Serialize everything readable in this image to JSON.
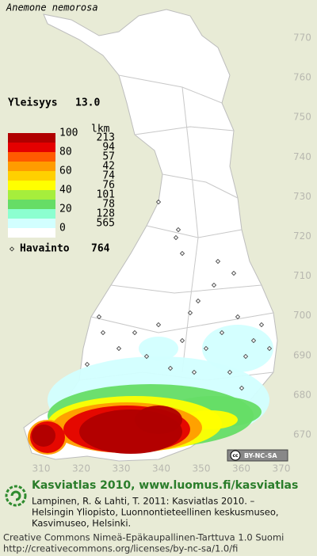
{
  "header": {
    "title": "Anemone nemorosa"
  },
  "frequency": {
    "label": "Yleisyys",
    "value": "13.0"
  },
  "legend": {
    "scale_labels": [
      100,
      80,
      60,
      40,
      20,
      0
    ],
    "count_header": "lkm",
    "counts": [
      213,
      94,
      57,
      42,
      74,
      76,
      101,
      78,
      128,
      565
    ],
    "colors": [
      "#b00000",
      "#e40000",
      "#ff5a00",
      "#ff9c00",
      "#ffd000",
      "#ffff00",
      "#a6ee3c",
      "#66dd66",
      "#8cffd0",
      "#d2ffff",
      "#ffffff"
    ]
  },
  "observations": {
    "label": "Havainto",
    "count": 764
  },
  "axes": {
    "y_labels": [
      770,
      760,
      750,
      740,
      730,
      720,
      710,
      700,
      690,
      680,
      670
    ],
    "x_labels": [
      310,
      320,
      330,
      340,
      350,
      360,
      370
    ]
  },
  "license_badge": {
    "icon": "cc",
    "text": "BY-NC-SA"
  },
  "footer": {
    "site": "Kasviatlas 2010, www.luomus.fi/kasviatlas",
    "citation_lines": [
      "Lampinen, R. & Lahti, T. 2011: Kasviatlas 2010. –",
      "Helsingin Yliopisto, Luonnontieteellinen keskusmuseo,",
      "Kasvimuseo, Helsinki."
    ],
    "license_lines": [
      "Creative Commons Nimeä-Epäkaupallinen-Tarttuva 1.0 Suomi",
      "http://creativecommons.org/licenses/by-nc-sa/1.0/fi"
    ]
  }
}
